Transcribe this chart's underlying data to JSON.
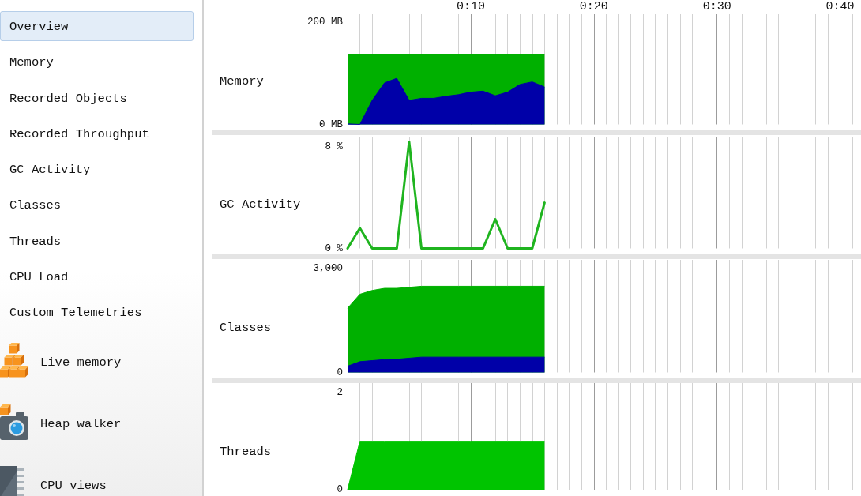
{
  "chart_data": [
    {
      "type": "other",
      "annotations": [
        "Overview",
        "Memory",
        "Recorded Objects",
        "Recorded Throughput",
        "GC Activity",
        "Classes",
        "Threads",
        "CPU Load",
        "Custom Telemetries",
        "Live memory",
        "Heap walker",
        "CPU views"
      ]
    },
    {
      "type": "area",
      "title": "Memory",
      "x": [
        0,
        1,
        2,
        3,
        4,
        5,
        6,
        7,
        8,
        9,
        10,
        11,
        12,
        13,
        14,
        15,
        16
      ],
      "stacked": true,
      "series": [
        {
          "color": "#0000a8",
          "values": [
            1,
            0,
            47,
            81,
            90,
            47,
            51,
            51,
            55,
            58,
            63,
            65,
            56,
            63,
            78,
            83,
            73
          ]
        },
        {
          "color": "#00b000",
          "values": [
            136,
            137,
            90,
            56,
            47,
            90,
            86,
            86,
            82,
            79,
            74,
            72,
            81,
            74,
            59,
            54,
            64
          ]
        }
      ],
      "xlim": [
        0,
        41.7
      ],
      "xticks": [
        {
          "value": 0,
          "label": null
        },
        {
          "value": 1,
          "label": null
        },
        {
          "value": 2,
          "label": null
        },
        {
          "value": 3,
          "label": null
        },
        {
          "value": 4,
          "label": null
        },
        {
          "value": 5,
          "label": null
        },
        {
          "value": 6,
          "label": null
        },
        {
          "value": 7,
          "label": null
        },
        {
          "value": 8,
          "label": null
        },
        {
          "value": 9,
          "label": null
        },
        {
          "value": 10,
          "label": "0:10"
        },
        {
          "value": 11,
          "label": null
        },
        {
          "value": 12,
          "label": null
        },
        {
          "value": 13,
          "label": null
        },
        {
          "value": 14,
          "label": null
        },
        {
          "value": 15,
          "label": null
        },
        {
          "value": 16,
          "label": null
        },
        {
          "value": 17,
          "label": null
        },
        {
          "value": 18,
          "label": null
        },
        {
          "value": 19,
          "label": null
        },
        {
          "value": 20,
          "label": "0:20"
        },
        {
          "value": 21,
          "label": null
        },
        {
          "value": 22,
          "label": null
        },
        {
          "value": 23,
          "label": null
        },
        {
          "value": 24,
          "label": null
        },
        {
          "value": 25,
          "label": null
        },
        {
          "value": 26,
          "label": null
        },
        {
          "value": 27,
          "label": null
        },
        {
          "value": 28,
          "label": null
        },
        {
          "value": 29,
          "label": null
        },
        {
          "value": 30,
          "label": "0:30"
        },
        {
          "value": 31,
          "label": null
        },
        {
          "value": 32,
          "label": null
        },
        {
          "value": 33,
          "label": null
        },
        {
          "value": 34,
          "label": null
        },
        {
          "value": 35,
          "label": null
        },
        {
          "value": 36,
          "label": null
        },
        {
          "value": 37,
          "label": null
        },
        {
          "value": 38,
          "label": null
        },
        {
          "value": 39,
          "label": null
        },
        {
          "value": 40,
          "label": "0:40"
        },
        {
          "value": 41,
          "label": null
        }
      ],
      "ylim": [
        0,
        215
      ],
      "yticks": [
        {
          "value": 0,
          "label": "0 MB"
        },
        {
          "value": 200,
          "label": "200 MB"
        }
      ],
      "grid": "x"
    },
    {
      "type": "line",
      "title": "GC Activity",
      "x": [
        0,
        1,
        2,
        3,
        4,
        5,
        6,
        7,
        8,
        9,
        10,
        11,
        12,
        13,
        14,
        15,
        16
      ],
      "series": [
        {
          "color": "#1fb41f",
          "values": [
            0,
            1.6,
            0,
            0,
            0,
            8.4,
            0,
            0,
            0,
            0,
            0,
            0,
            2.3,
            0,
            0,
            0,
            3.6
          ]
        }
      ],
      "xlim": [
        0,
        41.7
      ],
      "xticks": [
        0,
        1,
        2,
        3,
        4,
        5,
        6,
        7,
        8,
        9,
        10,
        11,
        12,
        13,
        14,
        15,
        16,
        17,
        18,
        19,
        20,
        21,
        22,
        23,
        24,
        25,
        26,
        27,
        28,
        29,
        30,
        31,
        32,
        33,
        34,
        35,
        36,
        37,
        38,
        39,
        40,
        41
      ],
      "ylim": [
        0,
        8.8
      ],
      "yticks": [
        {
          "value": 0,
          "label": "0 %"
        },
        {
          "value": 8,
          "label": "8 %"
        }
      ],
      "grid": "x",
      "tick_labels": "y"
    },
    {
      "type": "area",
      "title": "Classes",
      "x": [
        0,
        1,
        2,
        3,
        4,
        5,
        6,
        7,
        8,
        9,
        10,
        11,
        12,
        13,
        14,
        15,
        16
      ],
      "stacked": true,
      "series": [
        {
          "color": "#0000a8",
          "values": [
            180,
            310,
            340,
            370,
            380,
            410,
            440,
            440,
            440,
            440,
            440,
            440,
            440,
            440,
            440,
            440,
            440
          ]
        },
        {
          "color": "#00b000",
          "values": [
            1670,
            1940,
            2020,
            2050,
            2040,
            2040,
            2040,
            2040,
            2040,
            2040,
            2040,
            2040,
            2040,
            2040,
            2040,
            2040,
            2040
          ]
        }
      ],
      "xlim": [
        0,
        41.7
      ],
      "xticks": [
        0,
        1,
        2,
        3,
        4,
        5,
        6,
        7,
        8,
        9,
        10,
        11,
        12,
        13,
        14,
        15,
        16,
        17,
        18,
        19,
        20,
        21,
        22,
        23,
        24,
        25,
        26,
        27,
        28,
        29,
        30,
        31,
        32,
        33,
        34,
        35,
        36,
        37,
        38,
        39,
        40,
        41
      ],
      "ylim": [
        0,
        3240
      ],
      "yticks": [
        {
          "value": 0,
          "label": "0"
        },
        {
          "value": 3000,
          "label": "3,000"
        }
      ],
      "grid": "x",
      "tick_labels": "y"
    },
    {
      "type": "area",
      "title": "Threads",
      "x": [
        0,
        1,
        2,
        3,
        4,
        5,
        6,
        7,
        8,
        9,
        10,
        11,
        12,
        13,
        14,
        15,
        16
      ],
      "series": [
        {
          "color": "#00c400",
          "values": [
            0,
            1,
            1,
            1,
            1,
            1,
            1,
            1,
            1,
            1,
            1,
            1,
            1,
            1,
            1,
            1,
            1
          ]
        }
      ],
      "xlim": [
        0,
        41.7
      ],
      "xticks": [
        0,
        1,
        2,
        3,
        4,
        5,
        6,
        7,
        8,
        9,
        10,
        11,
        12,
        13,
        14,
        15,
        16,
        17,
        18,
        19,
        20,
        21,
        22,
        23,
        24,
        25,
        26,
        27,
        28,
        29,
        30,
        31,
        32,
        33,
        34,
        35,
        36,
        37,
        38,
        39,
        40,
        41
      ],
      "ylim": [
        0,
        2.2
      ],
      "yticks": [
        0,
        2
      ],
      "grid": "x",
      "tick_labels": "y"
    }
  ]
}
